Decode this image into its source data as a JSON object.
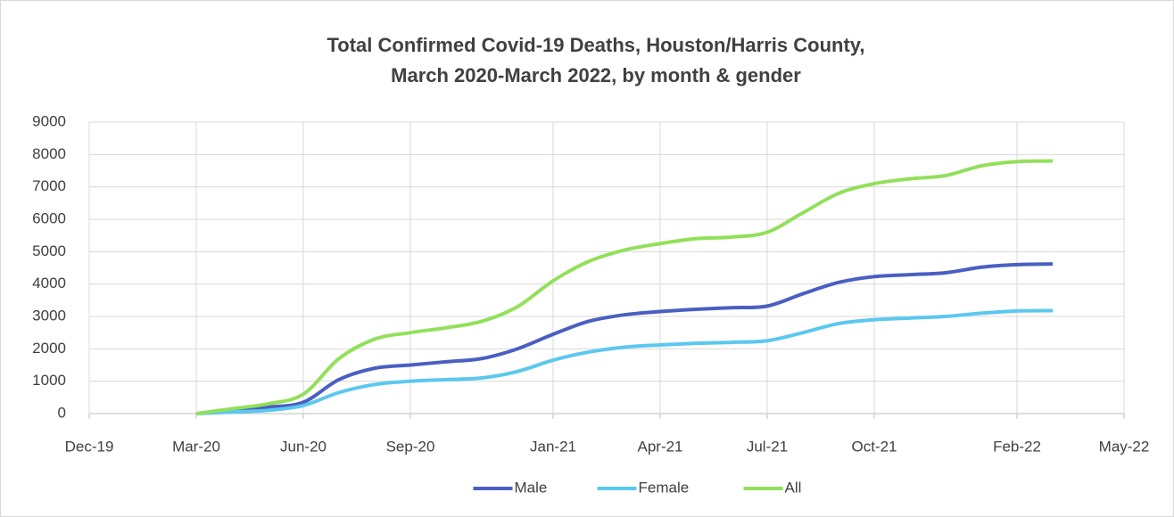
{
  "chart_data": {
    "type": "line",
    "title": [
      "Total Confirmed Covid-19 Deaths, Houston/Harris County,",
      "March 2020-March 2022, by month & gender"
    ],
    "x": [
      "2020-03",
      "2020-04",
      "2020-05",
      "2020-06",
      "2020-07",
      "2020-08",
      "2020-09",
      "2020-10",
      "2020-11",
      "2020-12",
      "2021-01",
      "2021-02",
      "2021-03",
      "2021-04",
      "2021-05",
      "2021-06",
      "2021-07",
      "2021-08",
      "2021-09",
      "2021-10",
      "2021-11",
      "2021-12",
      "2022-01",
      "2022-02",
      "2022-03"
    ],
    "series": [
      {
        "name": "Male",
        "color": "#4a5fc1",
        "values": [
          0,
          100,
          200,
          350,
          1050,
          1400,
          1500,
          1600,
          1700,
          2000,
          2450,
          2850,
          3050,
          3150,
          3220,
          3270,
          3320,
          3700,
          4050,
          4230,
          4290,
          4350,
          4520,
          4600,
          4620
        ]
      },
      {
        "name": "Female",
        "color": "#5bc8ef",
        "values": [
          0,
          50,
          100,
          250,
          650,
          900,
          1000,
          1050,
          1100,
          1300,
          1650,
          1900,
          2050,
          2120,
          2170,
          2200,
          2250,
          2500,
          2780,
          2900,
          2950,
          3000,
          3100,
          3170,
          3180
        ]
      },
      {
        "name": "All",
        "color": "#92e05a",
        "values": [
          0,
          150,
          300,
          600,
          1700,
          2300,
          2500,
          2650,
          2850,
          3300,
          4100,
          4700,
          5050,
          5250,
          5400,
          5450,
          5600,
          6200,
          6800,
          7100,
          7250,
          7350,
          7650,
          7780,
          7800
        ]
      }
    ],
    "xlim": [
      "2019-12",
      "2022-05"
    ],
    "xticks": [
      {
        "value": "2019-12",
        "label": "Dec-19"
      },
      {
        "value": "2020-03",
        "label": "Mar-20"
      },
      {
        "value": "2020-06",
        "label": "Jun-20"
      },
      {
        "value": "2020-09",
        "label": "Sep-20"
      },
      {
        "value": "2021-01",
        "label": "Jan-21"
      },
      {
        "value": "2021-04",
        "label": "Apr-21"
      },
      {
        "value": "2021-07",
        "label": "Jul-21"
      },
      {
        "value": "2021-10",
        "label": "Oct-21"
      },
      {
        "value": "2022-02",
        "label": "Feb-22"
      },
      {
        "value": "2022-05",
        "label": "May-22"
      }
    ],
    "ylim": [
      0,
      9000
    ],
    "yticks": [
      0,
      1000,
      2000,
      3000,
      4000,
      5000,
      6000,
      7000,
      8000,
      9000
    ],
    "grid": true,
    "legend": "bottom"
  }
}
